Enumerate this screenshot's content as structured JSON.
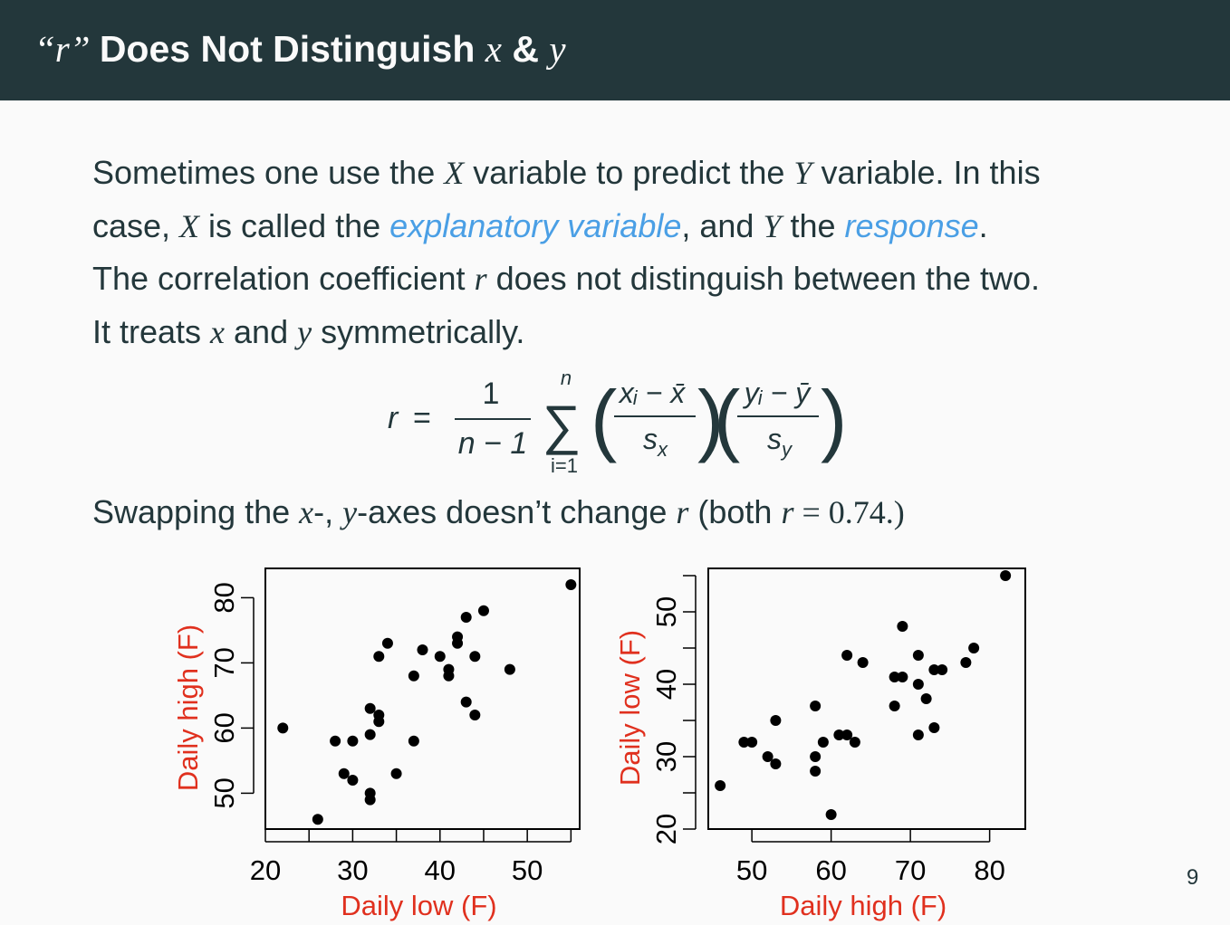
{
  "slide": {
    "title_prefix": "“r” ",
    "title_main": "Does Not Distinguish ",
    "title_x": "x",
    "title_amp": " & ",
    "title_y": "y",
    "page_number": "9"
  },
  "text": {
    "l1a": "Sometimes one use the ",
    "l1X": "X",
    "l1b": " variable to predict the ",
    "l1Y": "Y",
    "l1c": " variable. In this",
    "l2a": "case, ",
    "l2X": "X",
    "l2b": " is called the ",
    "l2em1": "explanatory variable",
    "l2c": ", and ",
    "l2Y": "Y",
    "l2d": " the ",
    "l2em2": "response",
    "l2e": ".",
    "l3a": "The correlation coefficient ",
    "l3r": "r",
    "l3b": " does not distinguish between the two.",
    "l4a": "It treats ",
    "l4x": "x",
    "l4b": " and ",
    "l4y": "y",
    "l4c": " symmetrically.",
    "s1": "Swapping the ",
    "sx": "x",
    "s2": "-, ",
    "sy": "y",
    "s3": "-axes doesn’t change ",
    "sr": "r",
    "s4": " (both ",
    "sr2": "r",
    "seq": " = 0.74.)"
  },
  "formula": {
    "lhs": "r",
    "eq": "=",
    "num": "1",
    "den": "n − 1",
    "sum_top": "n",
    "sum_bottom": "i=1",
    "sigma": "∑",
    "f1_num": "xᵢ − x̄",
    "f1_den": "s",
    "f1_den_sub": "x",
    "f2_num": "yᵢ − ȳ",
    "f2_den": "s",
    "f2_den_sub": "y"
  },
  "colors": {
    "title_bg": "#23373b",
    "text": "#23373b",
    "emphasis": "#4a9fe5",
    "axis_label": "#e0301e"
  },
  "chart_data": [
    {
      "type": "scatter",
      "xlabel": "Daily low (F)",
      "ylabel": "Daily high (F)",
      "xlim": [
        20,
        56
      ],
      "ylim": [
        44.5,
        84.5
      ],
      "xticks": [
        20,
        30,
        40,
        50
      ],
      "xminor": [
        25,
        35,
        45,
        55
      ],
      "yticks": [
        50,
        60,
        70,
        80
      ],
      "yminor": [],
      "points": [
        [
          22,
          60
        ],
        [
          26,
          46
        ],
        [
          28,
          58
        ],
        [
          29,
          53
        ],
        [
          30,
          58
        ],
        [
          30,
          52
        ],
        [
          32,
          63
        ],
        [
          32,
          59
        ],
        [
          32,
          50
        ],
        [
          32,
          49
        ],
        [
          33,
          62
        ],
        [
          33,
          61
        ],
        [
          33,
          71
        ],
        [
          34,
          73
        ],
        [
          35,
          53
        ],
        [
          37,
          68
        ],
        [
          37,
          58
        ],
        [
          38,
          72
        ],
        [
          40,
          71
        ],
        [
          41,
          69
        ],
        [
          41,
          68
        ],
        [
          42,
          74
        ],
        [
          42,
          73
        ],
        [
          43,
          77
        ],
        [
          43,
          64
        ],
        [
          44,
          71
        ],
        [
          44,
          62
        ],
        [
          45,
          78
        ],
        [
          48,
          69
        ],
        [
          55,
          82
        ]
      ]
    },
    {
      "type": "scatter",
      "xlabel": "Daily high (F)",
      "ylabel": "Daily low (F)",
      "xlim": [
        44.5,
        84.5
      ],
      "ylim": [
        20,
        56
      ],
      "xticks": [
        50,
        60,
        70,
        80
      ],
      "xminor": [],
      "yticks": [
        20,
        30,
        40,
        50
      ],
      "yminor": [
        25,
        35,
        45,
        55
      ],
      "points": [
        [
          46,
          26
        ],
        [
          49,
          32
        ],
        [
          50,
          32
        ],
        [
          52,
          30
        ],
        [
          53,
          29
        ],
        [
          53,
          35
        ],
        [
          58,
          37
        ],
        [
          58,
          30
        ],
        [
          58,
          28
        ],
        [
          59,
          32
        ],
        [
          60,
          22
        ],
        [
          61,
          33
        ],
        [
          62,
          33
        ],
        [
          62,
          44
        ],
        [
          63,
          32
        ],
        [
          64,
          43
        ],
        [
          68,
          41
        ],
        [
          68,
          37
        ],
        [
          69,
          41
        ],
        [
          69,
          48
        ],
        [
          71,
          44
        ],
        [
          71,
          40
        ],
        [
          71,
          33
        ],
        [
          72,
          38
        ],
        [
          73,
          42
        ],
        [
          73,
          34
        ],
        [
          74,
          42
        ],
        [
          77,
          43
        ],
        [
          78,
          45
        ],
        [
          82,
          55
        ]
      ]
    }
  ]
}
